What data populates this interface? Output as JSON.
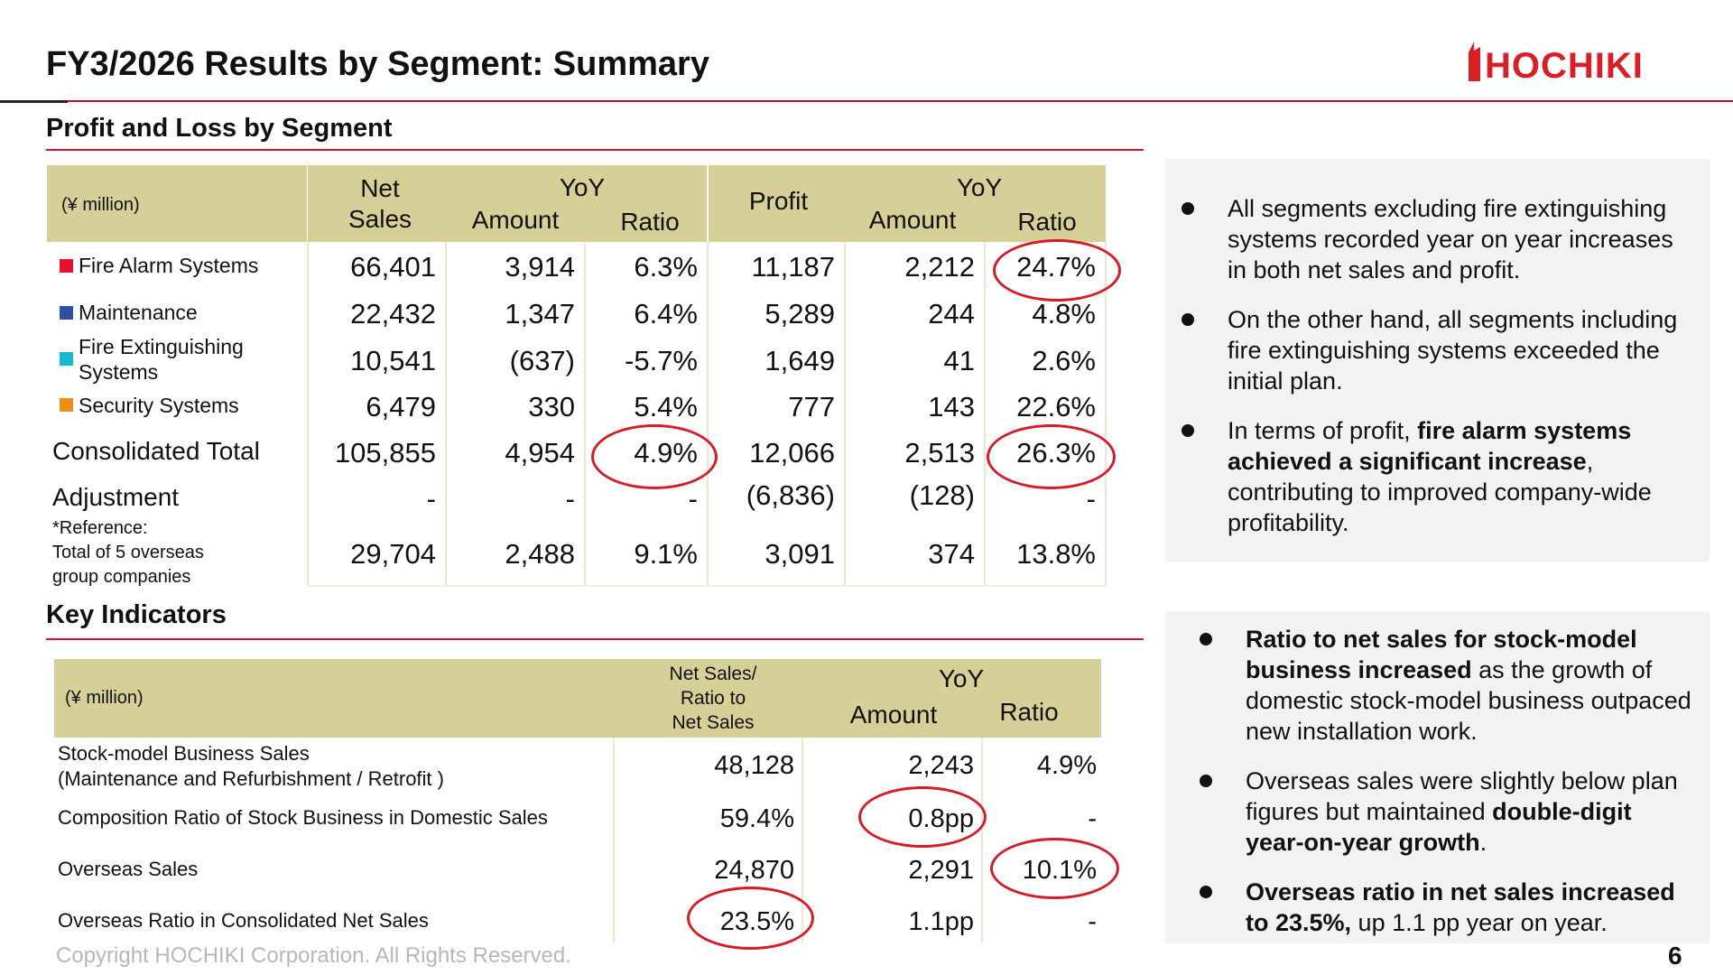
{
  "page": {
    "title": "FY3/2026 Results by Segment: Summary",
    "logo_text": "HOCHIKI",
    "footer": "Copyright HOCHIKI Corporation. All Rights Reserved.",
    "page_number": "6",
    "accent_color": "#c8102e",
    "header_fill_color": "#d6cf97"
  },
  "pl": {
    "section_title": "Profit and Loss by Segment",
    "unit": "(¥ million)",
    "headers": {
      "net_sales": "Net\nSales",
      "yoy": "YoY",
      "amount": "Amount",
      "ratio": "Ratio",
      "profit": "Profit",
      "yoy2": "YoY",
      "amount2": "Amount",
      "ratio2": "Ratio"
    },
    "rows": [
      {
        "label": "Fire Alarm Systems",
        "color": "#e8102a",
        "values": [
          "66,401",
          "3,914",
          "6.3%",
          "11,187",
          "2,212",
          "24.7%"
        ]
      },
      {
        "label": "Maintenance",
        "color": "#2f4ea5",
        "values": [
          "22,432",
          "1,347",
          "6.4%",
          "5,289",
          "244",
          "4.8%"
        ]
      },
      {
        "label": "Fire Extinguishing\nSystems",
        "color": "#17b7d6",
        "values": [
          "10,541",
          "(637)",
          "-5.7%",
          "1,649",
          "41",
          "2.6%"
        ]
      },
      {
        "label": "Security Systems",
        "color": "#f28c18",
        "values": [
          "6,479",
          "330",
          "5.4%",
          "777",
          "143",
          "22.6%"
        ]
      },
      {
        "label": "Consolidated Total",
        "color": "",
        "values": [
          "105,855",
          "4,954",
          "4.9%",
          "12,066",
          "2,513",
          "26.3%"
        ]
      },
      {
        "label": "Adjustment",
        "color": "",
        "values": [
          "-",
          "-",
          "-",
          "(6,836)",
          "(128)",
          "-"
        ]
      },
      {
        "label": "*Reference:\nTotal of 5 overseas\ngroup companies",
        "color": "",
        "values": [
          "29,704",
          "2,488",
          "9.1%",
          "3,091",
          "374",
          "13.8%"
        ]
      }
    ]
  },
  "ki": {
    "section_title": "Key Indicators",
    "unit": "(¥ million)",
    "headers": {
      "net_sales_ratio": "Net Sales/\nRatio to\nNet Sales",
      "yoy": "YoY",
      "amount": "Amount",
      "ratio": "Ratio"
    },
    "rows": [
      {
        "label": "Stock-model Business Sales\n(Maintenance and Refurbishment / Retrofit )",
        "values": [
          "48,128",
          "2,243",
          "4.9%"
        ]
      },
      {
        "label": "Composition Ratio of Stock Business in Domestic Sales",
        "values": [
          "59.4%",
          "0.8pp",
          "-"
        ]
      },
      {
        "label": "Overseas Sales",
        "values": [
          "24,870",
          "2,291",
          "10.1%"
        ]
      },
      {
        "label": "Overseas Ratio in Consolidated Net Sales",
        "values": [
          "23.5%",
          "1.1pp",
          "-"
        ]
      }
    ]
  },
  "notes_top": [
    [
      {
        "t": "All segments excluding fire extinguishing systems recorded year on year increases in both net sales and profit.",
        "b": false
      }
    ],
    [
      {
        "t": "On the other hand, all segments including fire extinguishing systems exceeded the initial plan.",
        "b": false
      }
    ],
    [
      {
        "t": "In terms of profit, ",
        "b": false
      },
      {
        "t": "fire alarm systems achieved a significant increase",
        "b": true
      },
      {
        "t": ", contributing to improved company-wide profitability.",
        "b": false
      }
    ]
  ],
  "notes_bottom": [
    [
      {
        "t": "Ratio to net sales for stock-model business increased",
        "b": true
      },
      {
        "t": " as the growth of domestic stock-model business outpaced new installation work.",
        "b": false
      }
    ],
    [
      {
        "t": "Overseas sales were slightly below plan figures but maintained ",
        "b": false
      },
      {
        "t": "double-digit year-on-year growth",
        "b": true
      },
      {
        "t": ".",
        "b": false
      }
    ],
    [
      {
        "t": "Overseas ratio in net sales increased to 23.5%,",
        "b": true
      },
      {
        "t": " up 1.1 pp year on year.",
        "b": false
      }
    ]
  ]
}
